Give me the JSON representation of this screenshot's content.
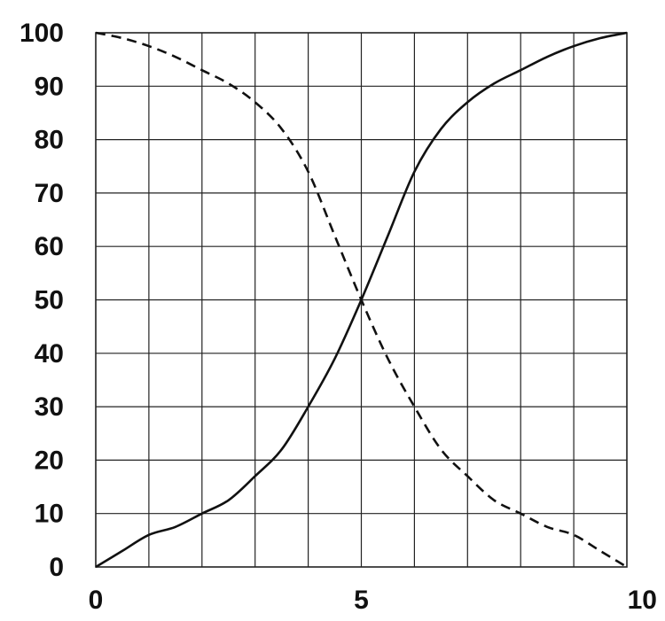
{
  "chart_data": {
    "type": "line",
    "title": "",
    "xlabel": "",
    "ylabel": "",
    "xlim": [
      0,
      10
    ],
    "ylim": [
      0,
      100
    ],
    "x_tick_labels": [
      "0",
      "5",
      "10"
    ],
    "x_ticks": [
      0,
      5,
      10
    ],
    "y_tick_labels": [
      "0",
      "10",
      "20",
      "30",
      "40",
      "50",
      "60",
      "70",
      "80",
      "90",
      "100"
    ],
    "y_ticks": [
      0,
      10,
      20,
      30,
      40,
      50,
      60,
      70,
      80,
      90,
      100
    ],
    "x_grid_step": 1,
    "y_grid_step": 10,
    "grid": true,
    "legend": "none",
    "series": [
      {
        "style": "solid",
        "color": "#111111",
        "x": [
          0,
          0.5,
          1,
          1.5,
          2,
          2.5,
          3,
          3.5,
          4,
          4.5,
          5,
          5.5,
          6,
          6.5,
          7,
          7.5,
          8,
          8.5,
          9,
          9.5,
          10
        ],
        "y": [
          0,
          3,
          6,
          7.5,
          10,
          12.5,
          17,
          22,
          30,
          39,
          50,
          62,
          74,
          82,
          87,
          90.5,
          93,
          95.5,
          97.5,
          99,
          100
        ]
      },
      {
        "style": "dashed",
        "color": "#111111",
        "x": [
          0,
          0.5,
          1,
          1.5,
          2,
          2.5,
          3,
          3.5,
          4,
          4.5,
          5,
          5.5,
          6,
          6.5,
          7,
          7.5,
          8,
          8.5,
          9,
          9.5,
          10
        ],
        "y": [
          100,
          99,
          97.5,
          95.5,
          93,
          90.5,
          87,
          82,
          74,
          62,
          50,
          39,
          30,
          22,
          17,
          12.5,
          10,
          7.5,
          6,
          3,
          0
        ]
      }
    ]
  }
}
